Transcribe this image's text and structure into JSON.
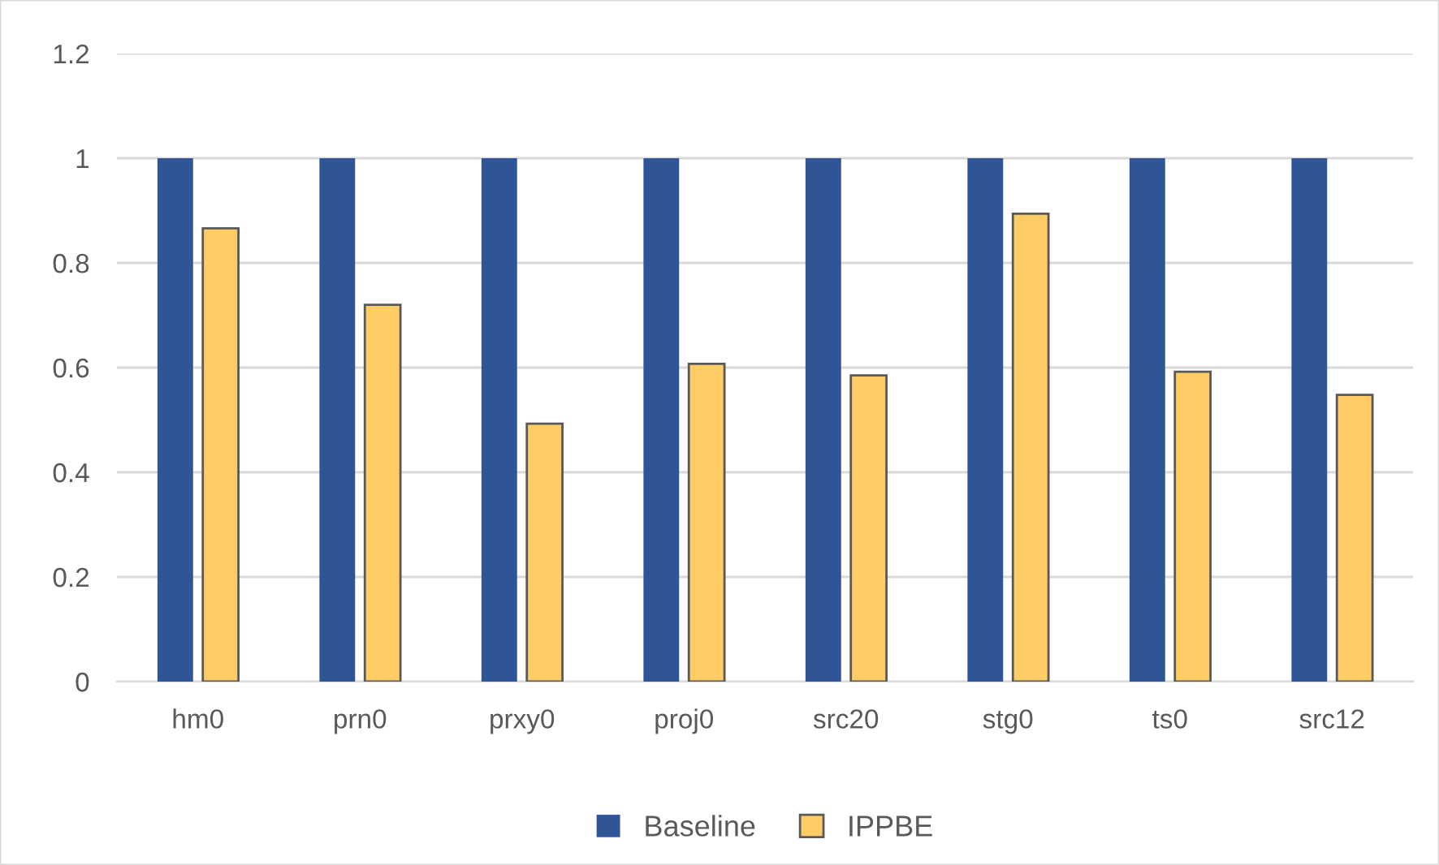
{
  "chart_data": {
    "type": "bar",
    "categories": [
      "hm0",
      "prn0",
      "prxy0",
      "proj0",
      "src20",
      "stg0",
      "ts0",
      "src12"
    ],
    "series": [
      {
        "name": "Baseline",
        "color": "#2f5597",
        "values": [
          1,
          1,
          1,
          1,
          1,
          1,
          1,
          1
        ]
      },
      {
        "name": "IPPBE",
        "color": "#ffcc66",
        "values": [
          0.866,
          0.72,
          0.493,
          0.607,
          0.585,
          0.894,
          0.592,
          0.548
        ]
      }
    ],
    "ylim": [
      0,
      1.2
    ],
    "yticks": [
      0,
      0.2,
      0.4,
      0.6,
      0.8,
      1,
      1.2
    ],
    "grid": "y",
    "legend": "bottom"
  }
}
